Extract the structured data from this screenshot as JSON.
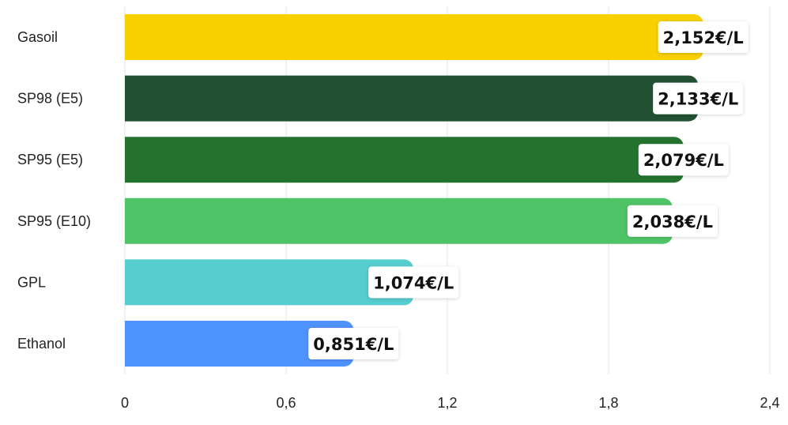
{
  "chart_data": {
    "type": "bar",
    "orientation": "horizontal",
    "categories": [
      "Gasoil",
      "SP98 (E5)",
      "SP95 (E5)",
      "SP95 (E10)",
      "GPL",
      "Ethanol"
    ],
    "values": [
      2.152,
      2.133,
      2.079,
      2.038,
      1.074,
      0.851
    ],
    "value_labels": [
      "2,152€/L",
      "2,133€/L",
      "2,079€/L",
      "2,038€/L",
      "1,074€/L",
      "0,851€/L"
    ],
    "colors": [
      "#f9d000",
      "#215132",
      "#23732f",
      "#4fc467",
      "#56cdcf",
      "#4f93ff"
    ],
    "x_ticks": [
      0,
      0.6,
      1.2,
      1.8,
      2.4
    ],
    "x_tick_labels": [
      "0",
      "0,6",
      "1,2",
      "1,8",
      "2,4"
    ],
    "xlim": [
      0,
      2.4
    ],
    "grid": true,
    "legend": "none",
    "title": "",
    "xlabel": "",
    "ylabel": ""
  }
}
